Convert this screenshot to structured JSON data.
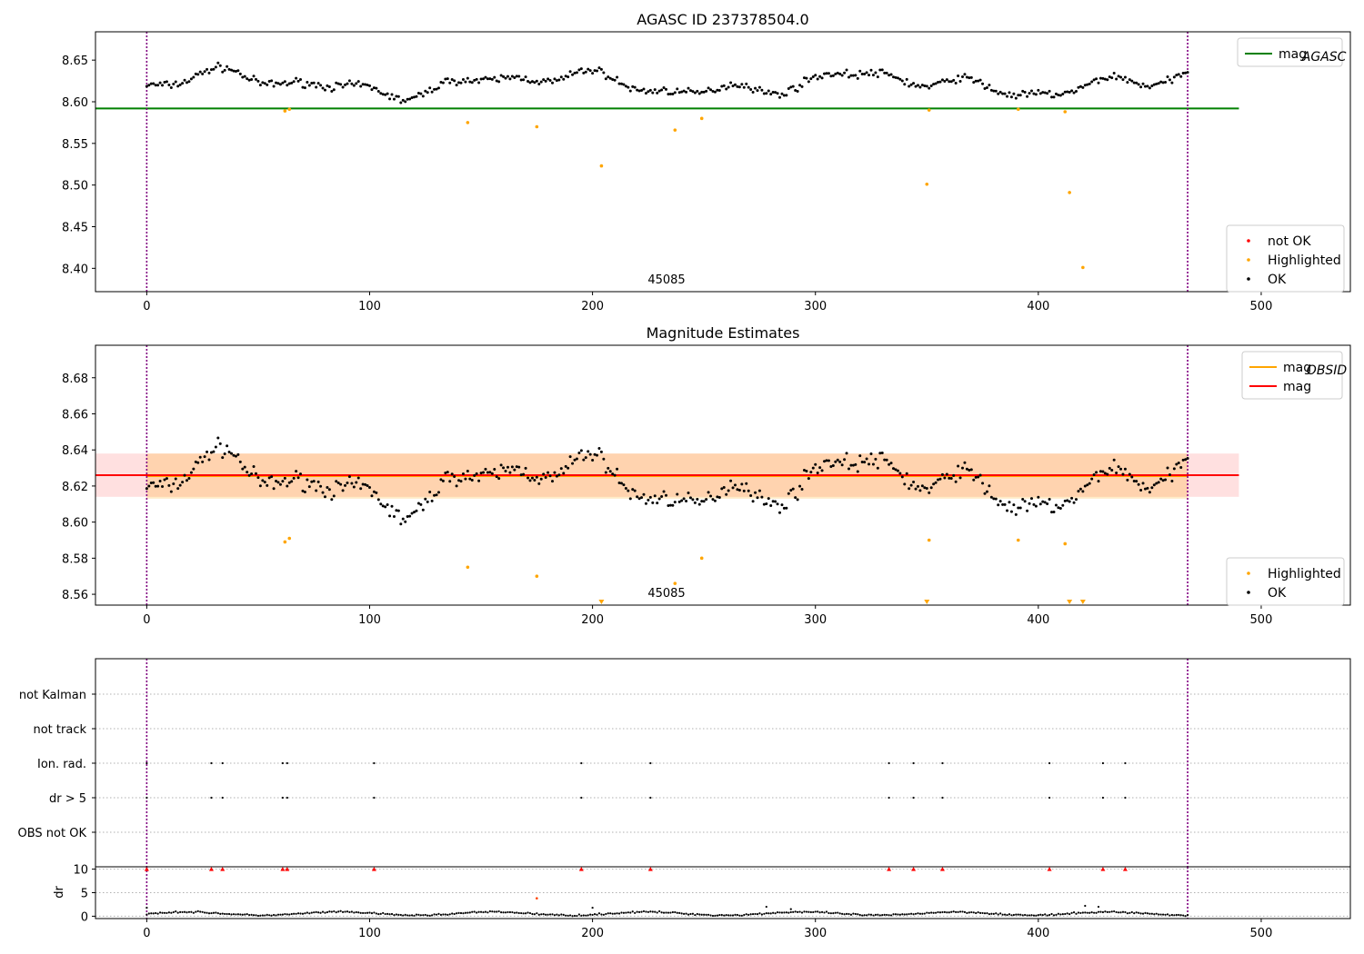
{
  "chart_data": [
    {
      "type": "scatter",
      "title": "AGASC ID 237378504.0",
      "xlim": [
        -23,
        540
      ],
      "ylim": [
        8.372,
        8.684
      ],
      "xticks": [
        0,
        100,
        200,
        300,
        400,
        500
      ],
      "yticks": [
        8.4,
        8.45,
        8.5,
        8.55,
        8.6,
        8.65
      ],
      "ytick_labels": [
        "8.40",
        "8.45",
        "8.50",
        "8.55",
        "8.60",
        "8.65"
      ],
      "vlines": [
        0,
        467
      ],
      "mag_agasc": 8.592,
      "mag_line_x": [
        -23,
        490
      ],
      "annotation": "45085",
      "legend_top": [
        {
          "label": "mag",
          "sub": "AGASC",
          "color": "#008000"
        }
      ],
      "legend_bottom": [
        {
          "label": "not OK",
          "color": "#ff0000"
        },
        {
          "label": "Highlighted",
          "color": "#ffa500"
        },
        {
          "label": "OK",
          "color": "#000000"
        }
      ],
      "highlighted": [
        [
          62,
          8.589
        ],
        [
          64,
          8.591
        ],
        [
          144,
          8.575
        ],
        [
          175,
          8.57
        ],
        [
          204,
          8.523
        ],
        [
          237,
          8.566
        ],
        [
          249,
          8.58
        ],
        [
          350,
          8.501
        ],
        [
          351,
          8.59
        ],
        [
          391,
          8.591
        ],
        [
          412,
          8.588
        ],
        [
          414,
          8.491
        ],
        [
          420,
          8.401
        ]
      ]
    },
    {
      "type": "scatter",
      "title": "Magnitude Estimates",
      "xlim": [
        -23,
        540
      ],
      "ylim": [
        8.554,
        8.698
      ],
      "xticks": [
        0,
        100,
        200,
        300,
        400,
        500
      ],
      "yticks": [
        8.56,
        8.58,
        8.6,
        8.62,
        8.64,
        8.66,
        8.68
      ],
      "ytick_labels": [
        "8.56",
        "8.58",
        "8.60",
        "8.62",
        "8.64",
        "8.66",
        "8.68"
      ],
      "vlines": [
        0,
        467
      ],
      "mag": 8.626,
      "mag_band": [
        8.614,
        8.638
      ],
      "mag_obsid": 8.6255,
      "mag_obsid_band": [
        8.613,
        8.638
      ],
      "annotation": "45085",
      "legend_top": [
        {
          "label": "mag",
          "sub": "OBSID",
          "color": "#ffa500"
        },
        {
          "label": "mag",
          "sub": "",
          "color": "#ff0000"
        }
      ],
      "legend_bottom": [
        {
          "label": "Highlighted",
          "color": "#ffa500"
        },
        {
          "label": "OK",
          "color": "#000000"
        }
      ],
      "highlighted": [
        [
          62,
          8.589
        ],
        [
          64,
          8.591
        ],
        [
          144,
          8.575
        ],
        [
          175,
          8.57
        ],
        [
          237,
          8.566
        ],
        [
          249,
          8.58
        ],
        [
          351,
          8.59
        ],
        [
          391,
          8.59
        ],
        [
          412,
          8.588
        ]
      ],
      "offscale_markers": [
        204,
        350,
        414,
        420
      ]
    },
    {
      "type": "scatter",
      "title": "",
      "xlim": [
        -23,
        540
      ],
      "flag_rows": [
        "not Kalman",
        "not track",
        "Ion. rad.",
        "dr > 5",
        "OBS not OK"
      ],
      "flag_events": [
        0,
        29,
        34,
        61,
        63,
        102,
        195,
        226,
        333,
        344,
        357,
        405,
        429,
        439
      ],
      "vlines": [
        0,
        467
      ]
    },
    {
      "type": "scatter",
      "title": "",
      "ylabel": "dr",
      "xlim": [
        -23,
        540
      ],
      "ylim": [
        -0.5,
        10.5
      ],
      "xticks": [
        0,
        100,
        200,
        300,
        400,
        500
      ],
      "yticks": [
        0,
        5,
        10
      ],
      "ytick_labels": [
        "0",
        "5",
        "10"
      ],
      "vlines": [
        0,
        467
      ],
      "clipped_at": 10,
      "clipped_events": [
        0,
        29,
        34,
        61,
        63,
        102,
        195,
        226,
        333,
        344,
        357,
        405,
        429,
        439
      ],
      "highlighted": [
        [
          175,
          3.8
        ]
      ],
      "spikes": [
        [
          0,
          1.8
        ],
        [
          200,
          1.8
        ],
        [
          278,
          2.0
        ],
        [
          289,
          1.5
        ],
        [
          421,
          2.2
        ],
        [
          427,
          2.0
        ]
      ]
    }
  ]
}
